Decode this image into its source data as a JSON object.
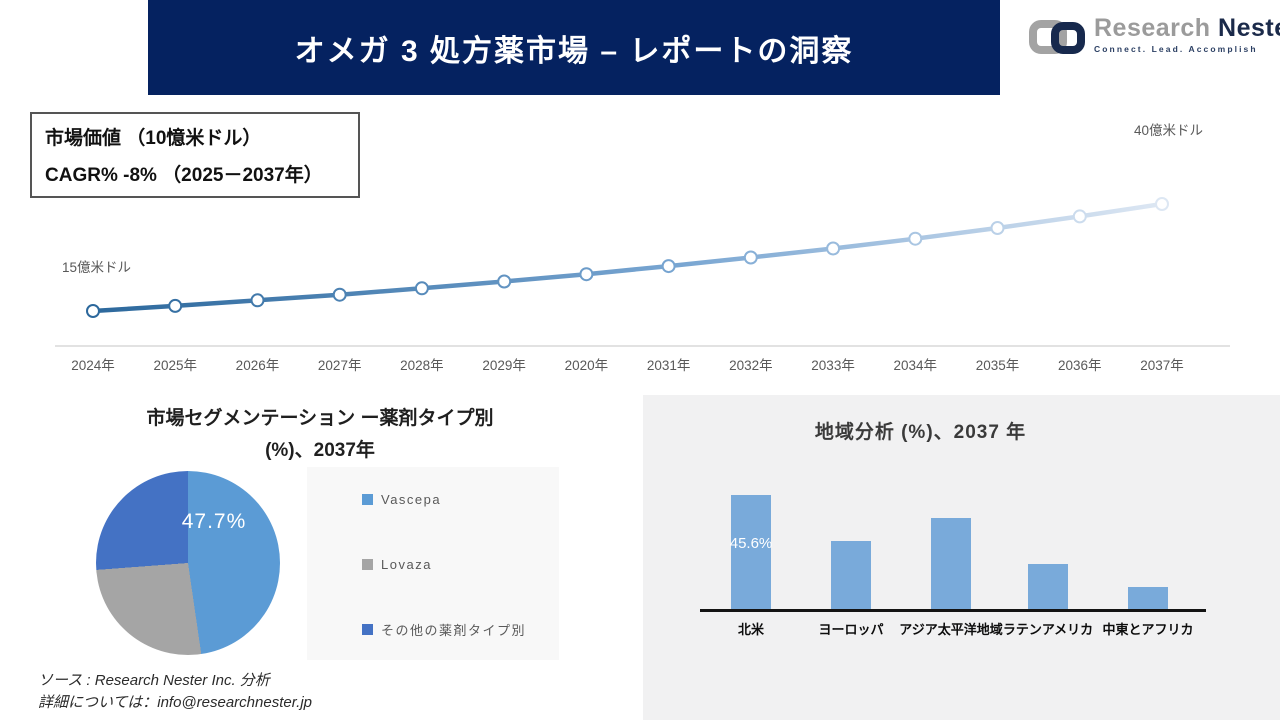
{
  "header": {
    "title": "オメガ 3 処方薬市場 – レポートの洞察"
  },
  "logo": {
    "brand_word1": "Research",
    "brand_word2": "Nester",
    "tagline": "Connect. Lead. Accomplish"
  },
  "info_box": {
    "line1": "市場価値 （10憶米ドル）",
    "line2": "CAGR% -8% （2025－2037年）"
  },
  "footer": {
    "line1": "ソース : Research Nester Inc. 分析",
    "line2": "詳細については：info@researchnester.jp"
  },
  "colors": {
    "header_bg": "#052260",
    "line_gradient_start": "#2c689c",
    "line_gradient_mid": "#79a6d2",
    "line_gradient_end": "#dde7f3",
    "pie_vascepa": "#5b9bd5",
    "pie_lovaza": "#a5a5a5",
    "pie_other": "#4472c4",
    "bar_fill": "#79aada",
    "panel_bg": "#f1f1f2",
    "legend_bg": "#f8f8f8",
    "axis_gray": "#d9d9d9",
    "text_gray": "#595959"
  },
  "chart_data": [
    {
      "type": "line",
      "title": "市場価値 （10憶米ドル）",
      "x": [
        "2024年",
        "2025年",
        "2026年",
        "2027年",
        "2028年",
        "2029年",
        "2020年",
        "2031年",
        "2032年",
        "2033年",
        "2034年",
        "2035年",
        "2036年",
        "2037年"
      ],
      "values": [
        15,
        16.2,
        17.5,
        18.8,
        20.3,
        21.9,
        23.6,
        25.5,
        27.5,
        29.6,
        31.9,
        34.4,
        37.1,
        40
      ],
      "unit": "億米ドル",
      "start_label": "15億米ドル",
      "end_label": "40億米ドル",
      "ylim": [
        15,
        40
      ],
      "grid": false,
      "note": "only endpoints labeled on chart; intermediate values estimated from curve"
    },
    {
      "type": "pie",
      "title_line1": "市場セグメンテーション ー薬剤タイプ別",
      "title_line2": "(%)、2037年",
      "labels": [
        "Vascepa",
        "Lovaza",
        "その他の薬剤タイプ別"
      ],
      "values": [
        47.7,
        26.1,
        26.2
      ],
      "colors": [
        "#5b9bd5",
        "#a5a5a5",
        "#4472c4"
      ],
      "shown_label": "47.7%",
      "legend_position": "right",
      "note": "only 47.7% labeled; other slice values estimated from angles"
    },
    {
      "type": "bar",
      "title": "地域分析 (%)、2037 年",
      "categories": [
        "北米",
        "ヨーロッパ",
        "アジア太平洋地域",
        "ラテンアメリカ",
        "中東とアフリカ"
      ],
      "values": [
        45.6,
        27.2,
        36.4,
        18,
        8.8
      ],
      "shown_label": "45.6%",
      "ylim": [
        0,
        50
      ],
      "grid": false,
      "note": "only 45.6% labeled; other bar values estimated from heights"
    }
  ]
}
